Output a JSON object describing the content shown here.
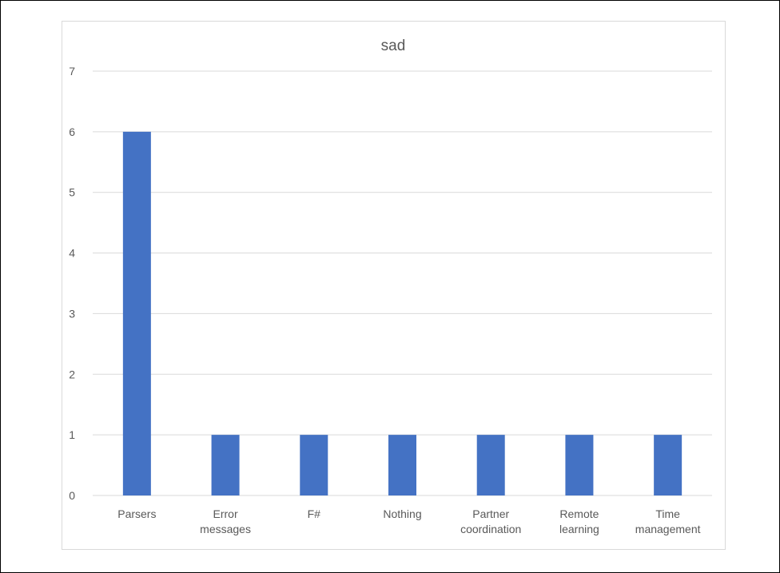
{
  "chart_data": {
    "type": "bar",
    "title": "sad",
    "categories": [
      [
        "Parsers"
      ],
      [
        "Error",
        "messages"
      ],
      [
        "F#"
      ],
      [
        "Nothing"
      ],
      [
        "Partner",
        "coordination"
      ],
      [
        "Remote",
        "learning"
      ],
      [
        "Time",
        "management"
      ]
    ],
    "values": [
      6,
      1,
      1,
      1,
      1,
      1,
      1
    ],
    "ylim": [
      0,
      7
    ],
    "yticks": [
      0,
      1,
      2,
      3,
      4,
      5,
      6,
      7
    ],
    "grid": true,
    "legend": "none",
    "colors": {
      "bar": "#4472c4",
      "grid": "#d9d9d9",
      "text": "#595959"
    }
  }
}
